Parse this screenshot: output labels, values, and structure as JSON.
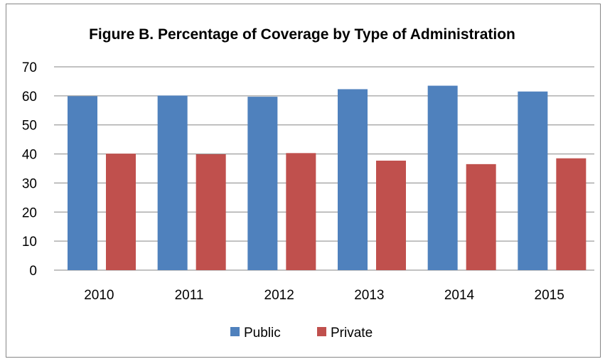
{
  "chart_data": {
    "type": "bar",
    "title": "Figure B. Percentage of Coverage by Type of Administration",
    "xlabel": "",
    "ylabel": "",
    "categories": [
      "2010",
      "2011",
      "2012",
      "2013",
      "2014",
      "2015"
    ],
    "series": [
      {
        "name": "Public",
        "color": "#4F81BD",
        "values": [
          59.9,
          60.1,
          59.7,
          62.3,
          63.5,
          61.5
        ]
      },
      {
        "name": "Private",
        "color": "#C0504D",
        "values": [
          40.1,
          39.9,
          40.3,
          37.7,
          36.5,
          38.5
        ]
      }
    ],
    "ylim": [
      0,
      70
    ],
    "yticks": [
      "0",
      "10",
      "20",
      "30",
      "40",
      "50",
      "60",
      "70"
    ],
    "grid": true,
    "legend_position": "bottom"
  }
}
